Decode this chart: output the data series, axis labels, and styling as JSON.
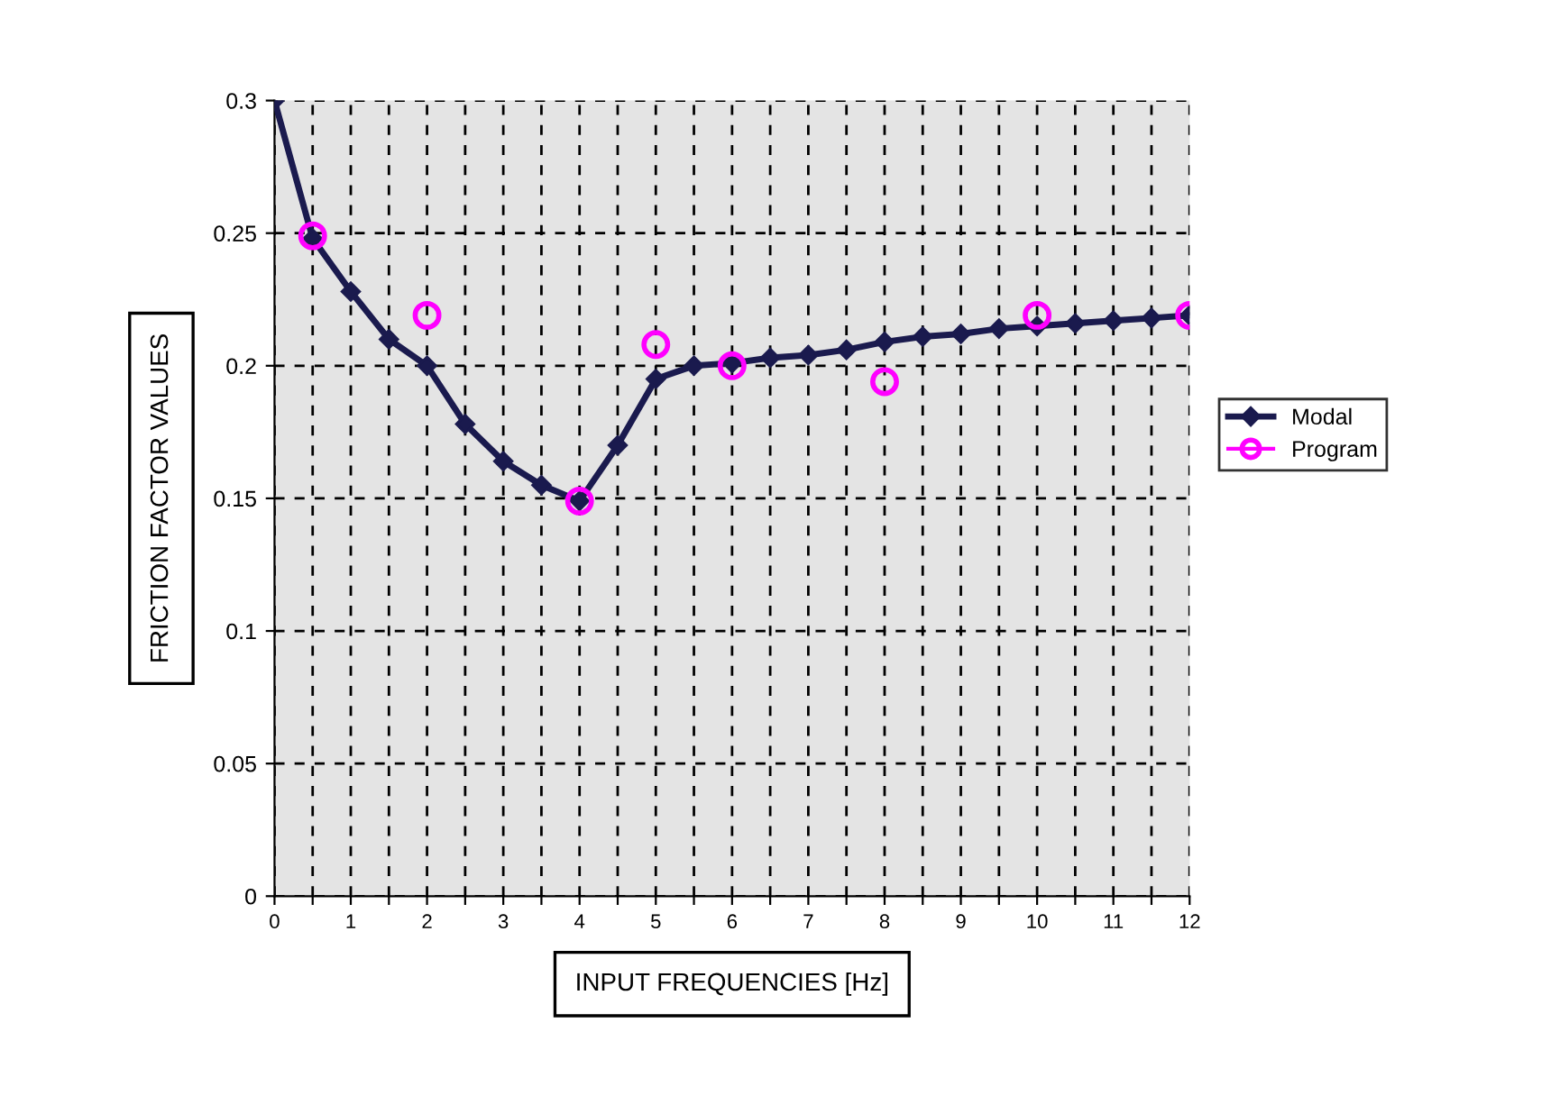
{
  "chart_data": {
    "type": "line",
    "xlabel": "INPUT FREQUENCIES [Hz]",
    "ylabel": "FRICTION FACTOR VALUES",
    "xlim": [
      0,
      12
    ],
    "ylim": [
      0,
      0.3
    ],
    "xticks": [
      0,
      {
        "value": 0.5,
        "label": null
      },
      1,
      {
        "value": 1.5,
        "label": null
      },
      2,
      {
        "value": 2.5,
        "label": null
      },
      3,
      {
        "value": 3.5,
        "label": null
      },
      4,
      {
        "value": 4.5,
        "label": null
      },
      5,
      {
        "value": 5.5,
        "label": null
      },
      6,
      {
        "value": 6.5,
        "label": null
      },
      7,
      {
        "value": 7.5,
        "label": null
      },
      8,
      {
        "value": 8.5,
        "label": null
      },
      9,
      {
        "value": 9.5,
        "label": null
      },
      10,
      {
        "value": 10.5,
        "label": null
      },
      11,
      {
        "value": 11.5,
        "label": null
      },
      12
    ],
    "yticks": [
      0,
      0.05,
      0.1,
      0.15,
      0.2,
      0.25,
      0.3
    ],
    "grid": true,
    "legend": "right",
    "series": [
      {
        "name": "Modal",
        "color": "#1a1a4e",
        "marker": "diamond",
        "x": [
          0,
          0.5,
          1,
          1.5,
          2,
          2.5,
          3,
          3.5,
          4,
          4.5,
          5,
          5.5,
          6,
          6.5,
          7,
          7.5,
          8,
          8.5,
          9,
          9.5,
          10,
          10.5,
          11,
          11.5,
          12
        ],
        "values": [
          0.3,
          0.248,
          0.228,
          0.21,
          0.2,
          0.178,
          0.164,
          0.155,
          0.149,
          0.17,
          0.195,
          0.2,
          0.201,
          0.203,
          0.204,
          0.206,
          0.209,
          0.211,
          0.212,
          0.214,
          0.215,
          0.216,
          0.217,
          0.218,
          0.219
        ]
      },
      {
        "name": "Program",
        "type": "scatter",
        "color": "#ff00ff",
        "marker": "circle",
        "x": [
          0.5,
          2,
          4,
          5,
          6,
          8,
          10,
          12
        ],
        "values": [
          0.249,
          0.219,
          0.149,
          0.208,
          0.2,
          0.194,
          0.219,
          0.219
        ]
      }
    ]
  }
}
